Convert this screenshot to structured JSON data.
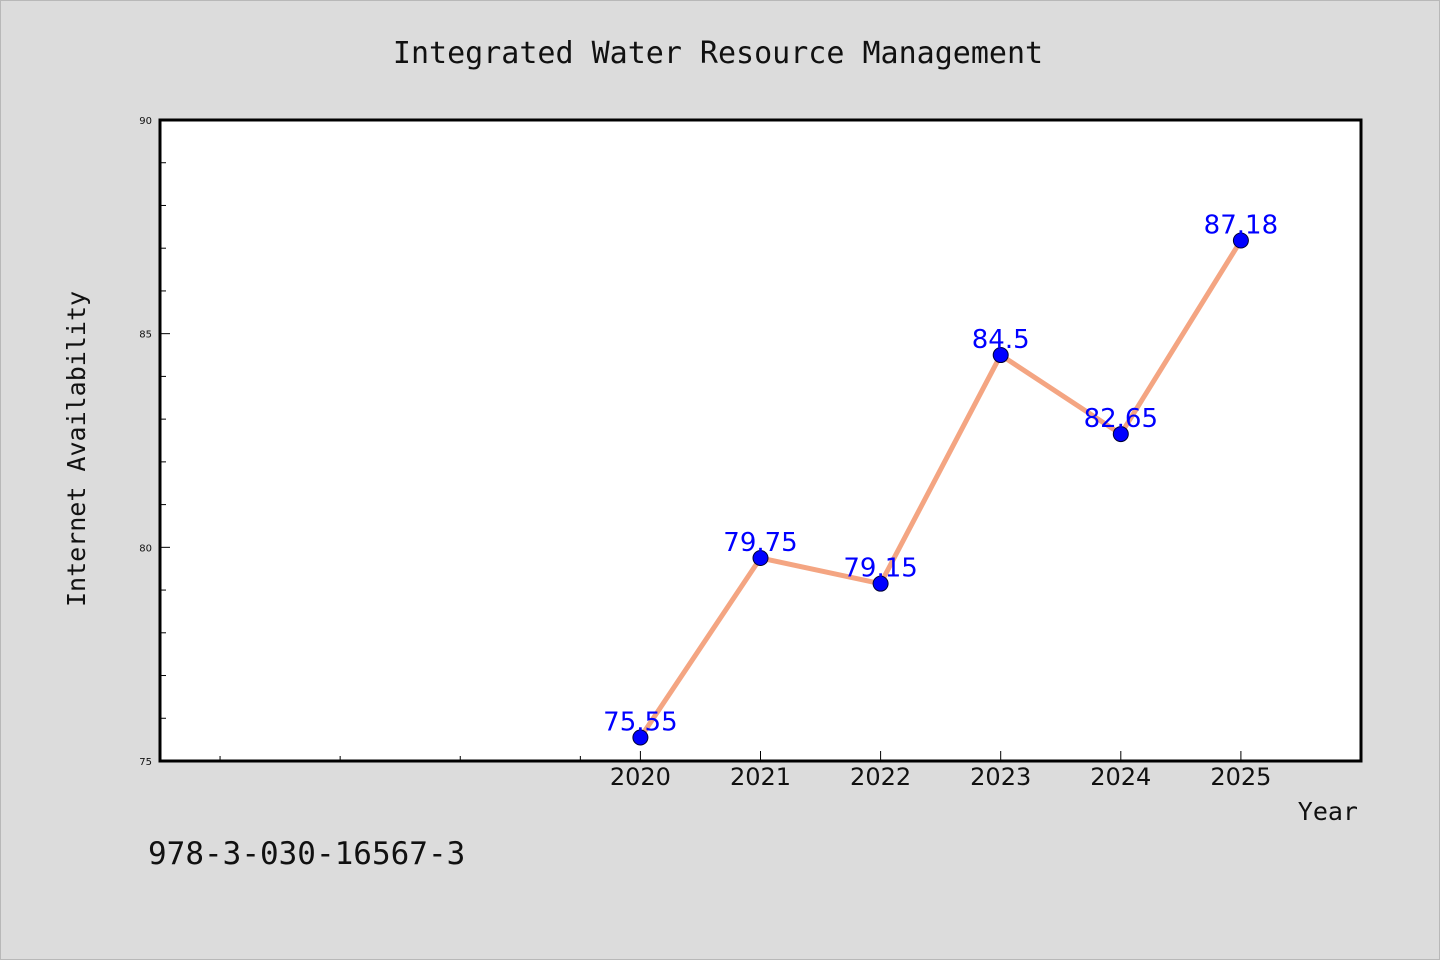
{
  "page": {
    "background": "#dcdcdc",
    "footer_text": "978-3-030-16567-3"
  },
  "chart_data": {
    "type": "line",
    "title": "Integrated Water Resource Management",
    "xlabel": "Year",
    "ylabel": "Internet Availability",
    "x": [
      2020,
      2021,
      2022,
      2023,
      2024,
      2025
    ],
    "x_tick_labels": [
      "2020",
      "2021",
      "2022",
      "2023",
      "2024",
      "2025"
    ],
    "series": [
      {
        "values": [
          75.55,
          79.75,
          79.15,
          84.5,
          82.65,
          87.18
        ],
        "data_labels": [
          "75.55",
          "79.75",
          "79.15",
          "84.5",
          "82.65",
          "87.18"
        ],
        "line_color": "#f4a582",
        "marker_color": "#0000ff",
        "label_color": "#0000ff"
      }
    ],
    "xlim": [
      2016,
      2026
    ],
    "ylim": [
      75,
      90
    ],
    "y_major_ticks": [
      75,
      80,
      85,
      90
    ],
    "y_tick_labels": [
      "75",
      "80",
      "85",
      "90"
    ],
    "y_minor_step": 1,
    "x_minor_ticks": [
      2016.5,
      2017.5,
      2018.5,
      2019.5
    ],
    "grid": false,
    "legend": "none",
    "plot_background": "#ffffff"
  }
}
